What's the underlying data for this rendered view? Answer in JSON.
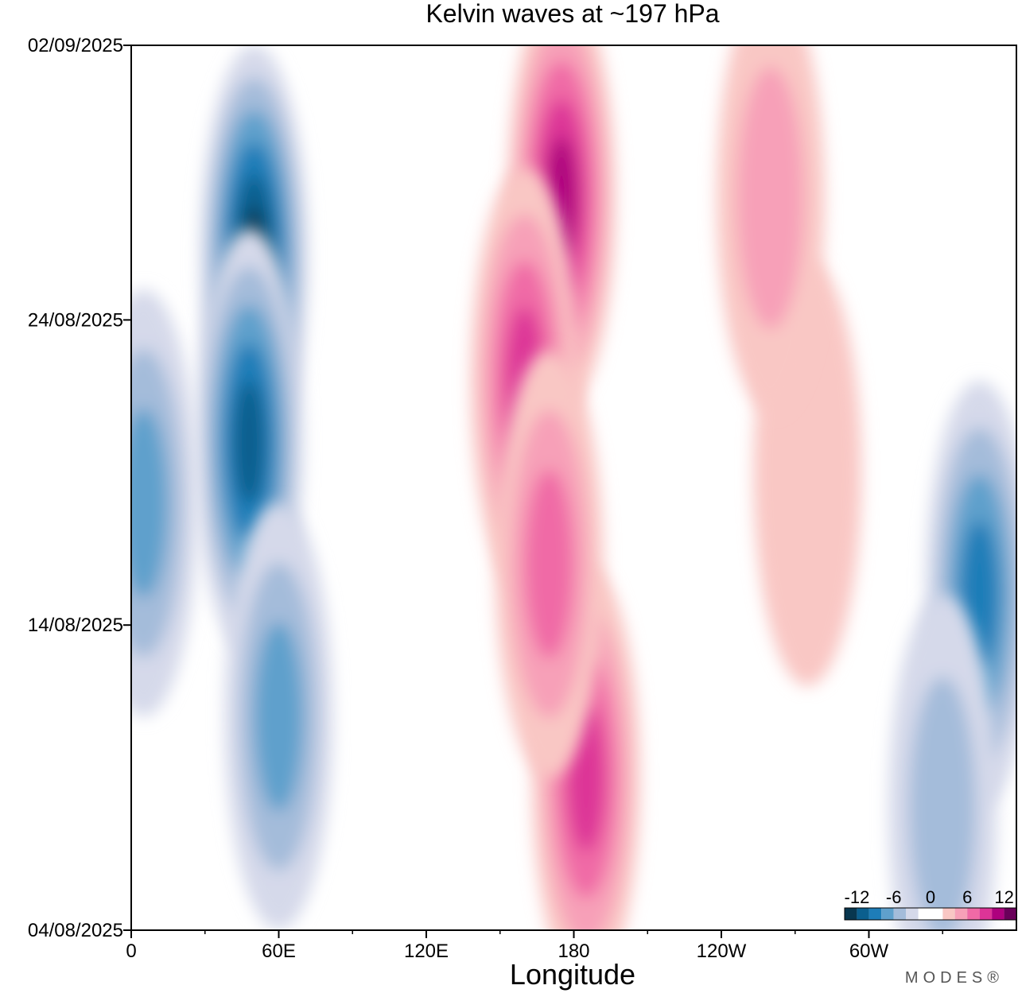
{
  "chart_data": {
    "type": "heatmap",
    "title": "Kelvin waves at ~197 hPa",
    "xlabel": "Longitude",
    "ylabel": "",
    "x_ticks": [
      {
        "lon": 0,
        "label": "0"
      },
      {
        "lon": 60,
        "label": "60E"
      },
      {
        "lon": 120,
        "label": "120E"
      },
      {
        "lon": 180,
        "label": "180"
      },
      {
        "lon": 240,
        "label": "120W"
      },
      {
        "lon": 300,
        "label": "60W"
      }
    ],
    "x_range": [
      0,
      360
    ],
    "y_ticks": [
      {
        "day": 0,
        "label": "04/08/2025"
      },
      {
        "day": 10,
        "label": "14/08/2025"
      },
      {
        "day": 20,
        "label": "24/08/2025"
      },
      {
        "day": 29,
        "label": "02/09/2025"
      }
    ],
    "y_range_days": [
      0,
      29
    ],
    "colorbar": {
      "labels": [
        "-12",
        "-6",
        "0",
        "6",
        "12"
      ],
      "label_values": [
        -12,
        -6,
        0,
        6,
        12
      ],
      "range": [
        -14,
        14
      ],
      "levels": [
        -14,
        -12,
        -10,
        -8,
        -6,
        -4,
        -2,
        2,
        4,
        6,
        8,
        10,
        12,
        14
      ],
      "colors": [
        "#08374f",
        "#0b5f8e",
        "#1e7db8",
        "#5fa0cc",
        "#a4bcda",
        "#d5d9ea",
        "#ffffff",
        "#f9c7c4",
        "#f7a0b8",
        "#f06aa6",
        "#dd3497",
        "#ae017e",
        "#6a005a"
      ]
    },
    "anomaly_regions": [
      {
        "lon": 50,
        "day": 22,
        "value": -12
      },
      {
        "lon": 48,
        "day": 16,
        "value": -10
      },
      {
        "lon": 5,
        "day": 14,
        "value": -7
      },
      {
        "lon": 60,
        "day": 7,
        "value": -6
      },
      {
        "lon": 345,
        "day": 11,
        "value": -8
      },
      {
        "lon": 330,
        "day": 4,
        "value": -5
      },
      {
        "lon": 175,
        "day": 24,
        "value": 11
      },
      {
        "lon": 160,
        "day": 18,
        "value": 9
      },
      {
        "lon": 185,
        "day": 5,
        "value": 8
      },
      {
        "lon": 170,
        "day": 12,
        "value": 6
      },
      {
        "lon": 275,
        "day": 15,
        "value": 3
      },
      {
        "lon": 260,
        "day": 24,
        "value": 4
      }
    ]
  },
  "brand": "MODES®"
}
